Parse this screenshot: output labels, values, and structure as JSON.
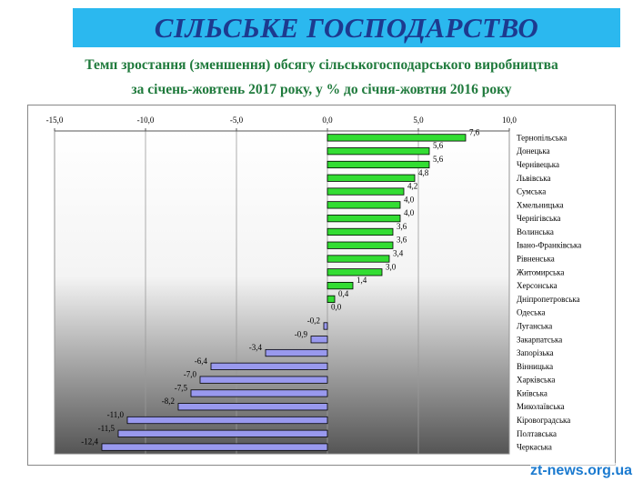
{
  "banner": {
    "title": "СІЛЬСЬКЕ ГОСПОДАРСТВО"
  },
  "subtitle": {
    "line1": "Темп зростання (зменшення) обсягу сільськогосподарського виробництва",
    "line2": "за січень-жовтень 2017 року, у % до січня-жовтня 2016 року"
  },
  "watermark": "zt-news.org.ua",
  "colors": {
    "banner_bg": "#2bb8ef",
    "banner_text": "#1d3a8f",
    "subtitle_text": "#1f7a3c",
    "positive_bar": "#33dd33",
    "negative_bar": "#9999ee",
    "watermark": "#1c7bd0"
  },
  "chart_data": {
    "type": "bar",
    "orientation": "horizontal",
    "xlim": [
      -15,
      10
    ],
    "xticks": [
      -15,
      -10,
      -5,
      0,
      5,
      10
    ],
    "xtick_labels": [
      "-15,0",
      "-10,0",
      "-5,0",
      "0,0",
      "5,0",
      "10,0"
    ],
    "xaxis_position": "top",
    "grid": true,
    "categories": [
      "Тернопільська",
      "Донецька",
      "Чернівецька",
      "Львівська",
      "Сумська",
      "Хмельницька",
      "Чернігівська",
      "Волинська",
      "Івано-Франківська",
      "Рівненська",
      "Житомирська",
      "Херсонська",
      "Дніпропетровська",
      "Одеська",
      "Луганська",
      "Закарпатська",
      "Запорізька",
      "Вінницька",
      "Харківська",
      "Київська",
      "Миколаївська",
      "Кіровоградська",
      "Полтавська",
      "Черкаська"
    ],
    "values": [
      7.6,
      5.6,
      5.6,
      4.8,
      4.2,
      4.0,
      4.0,
      3.6,
      3.6,
      3.4,
      3.0,
      1.4,
      0.4,
      0.0,
      -0.2,
      -0.9,
      -3.4,
      -6.4,
      -7.0,
      -7.5,
      -8.2,
      -11.0,
      -11.5,
      -12.4
    ],
    "value_labels": [
      "7,6",
      "5,6",
      "5,6",
      "4,8",
      "4,2",
      "4,0",
      "4,0",
      "3,6",
      "3,6",
      "3,4",
      "3,0",
      "1,4",
      "0,4",
      "0,0",
      "-0,2",
      "-0,9",
      "-3,4",
      "-6,4",
      "-7,0",
      "-7,5",
      "-8,2",
      "-11,0",
      "-11,5",
      "-12,4"
    ]
  }
}
